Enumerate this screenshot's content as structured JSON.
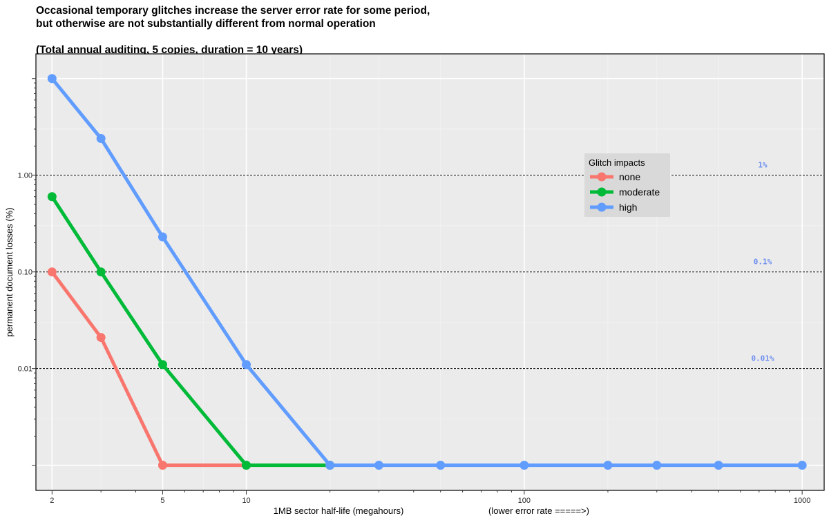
{
  "chart_data": {
    "type": "line",
    "title": "Occasional temporary glitches increase the server error rate for some period,",
    "title_line2": "but otherwise are not substantially different from normal operation",
    "subtitle": "(Total annual auditing, 5 copies, duration = 10 years)",
    "xlabel": "1MB sector half-life (megahours)",
    "xlabel_note": "(lower error rate =====>)",
    "ylabel": "permanent document losses (%)",
    "x_scale": "log",
    "y_scale": "log",
    "xlim": [
      1.75,
      1200
    ],
    "ylim": [
      0.00055,
      18
    ],
    "x_ticks": [
      2,
      5,
      10,
      100,
      1000
    ],
    "x_tick_labels": [
      "2",
      "5",
      "10",
      "100",
      "1000"
    ],
    "y_ticks": [
      0.01,
      0.1,
      1
    ],
    "y_tick_labels": [
      "0.01",
      "0.10",
      "1.00"
    ],
    "grid": true,
    "background": "#ebebeb",
    "reference_lines": [
      {
        "y": 1,
        "label": "1%"
      },
      {
        "y": 0.1,
        "label": "0.1%"
      },
      {
        "y": 0.01,
        "label": "0.01%"
      }
    ],
    "legend": {
      "title": "Glitch impacts",
      "placement": "top-right"
    },
    "floor_value": 0.001,
    "series": [
      {
        "name": "none",
        "color": "#f8766d",
        "x": [
          2,
          3,
          5,
          10
        ],
        "y": [
          0.1,
          0.021,
          0.001,
          0.001
        ]
      },
      {
        "name": "moderate",
        "color": "#00ba38",
        "x": [
          2,
          3,
          5,
          10,
          20
        ],
        "y": [
          0.6,
          0.1,
          0.011,
          0.001,
          0.001
        ]
      },
      {
        "name": "high",
        "color": "#619cff",
        "x": [
          2,
          3,
          5,
          10,
          20,
          30,
          50,
          100,
          200,
          300,
          500,
          1000
        ],
        "y": [
          10,
          2.4,
          0.23,
          0.011,
          0.001,
          0.001,
          0.001,
          0.001,
          0.001,
          0.001,
          0.001,
          0.001
        ]
      }
    ]
  }
}
